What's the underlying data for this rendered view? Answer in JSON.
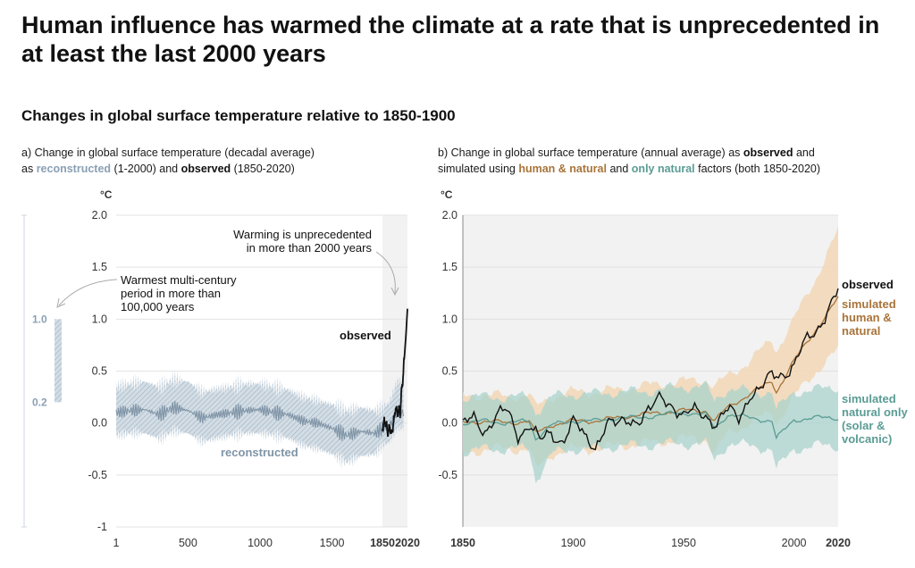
{
  "title": "Human influence has warmed the climate at a rate that is unprecedented in at least the last 2000 years",
  "subtitle": "Changes in global surface temperature relative to 1850-1900",
  "colors": {
    "reconstructed": "#8aa0b4",
    "reconstructed_band": "#c6d2dc",
    "observed": "#111111",
    "human_natural": "#a8743a",
    "human_natural_band": "#f2d7b6",
    "natural": "#5a9c94",
    "natural_band": "#a9d3cc",
    "plot_bg": "#f2f2f2"
  },
  "panel_a": {
    "title_prefix": "a) Change in global surface temperature (decadal average)",
    "title_as": "as",
    "title_reconstructed": "reconstructed",
    "title_recon_range": "(1-2000) and",
    "title_observed": "observed",
    "title_obs_range": "(1850-2020)"
  },
  "panel_b": {
    "title_prefix": "b) Change in global surface temperature (annual average) as",
    "title_observed": "observed",
    "title_and": "and",
    "title_simulated": "simulated using",
    "title_hn": "human & natural",
    "title_and2": "and",
    "title_nat": "only natural",
    "title_suffix": "factors (both 1850-2020)"
  },
  "chart_data": [
    {
      "type": "line",
      "panel": "a",
      "ylabel": "°C",
      "ylim": [
        -1,
        2
      ],
      "xlim": [
        1,
        2020
      ],
      "x_ticks": [
        "1",
        "500",
        "1000",
        "1500",
        "1850",
        "2020"
      ],
      "y_ticks": [
        "2.0",
        "1.5",
        "1.0",
        "0.5",
        "0.0",
        "-0.5",
        "-1"
      ],
      "shaded_period": [
        1850,
        2020
      ],
      "warmest_period_range": [
        0.2,
        1.0
      ],
      "warmest_period_labels": [
        "1.0",
        "0.2"
      ],
      "annotations": {
        "warming": [
          "Warming is unprecedented",
          "in more than 2000 years"
        ],
        "warmest": [
          "Warmest multi-century",
          "period in more than",
          "100,000 years"
        ]
      },
      "series": [
        {
          "name": "reconstructed",
          "x": [
            1,
            100,
            200,
            300,
            400,
            500,
            600,
            700,
            800,
            900,
            1000,
            1100,
            1200,
            1300,
            1400,
            1500,
            1600,
            1700,
            1800,
            1850,
            1900,
            1950
          ],
          "values": [
            0.1,
            0.12,
            0.13,
            0.08,
            0.15,
            0.12,
            0.05,
            0.08,
            0.1,
            0.12,
            0.13,
            0.1,
            0.08,
            0.02,
            0.0,
            -0.05,
            -0.12,
            -0.08,
            -0.1,
            -0.05,
            -0.02,
            0.1
          ],
          "lower": [
            -0.12,
            -0.1,
            -0.1,
            -0.15,
            -0.08,
            -0.1,
            -0.18,
            -0.15,
            -0.12,
            -0.1,
            -0.1,
            -0.12,
            -0.15,
            -0.22,
            -0.25,
            -0.3,
            -0.38,
            -0.32,
            -0.3,
            -0.22,
            -0.18,
            -0.05
          ],
          "upper": [
            0.35,
            0.38,
            0.4,
            0.35,
            0.42,
            0.4,
            0.3,
            0.33,
            0.35,
            0.38,
            0.38,
            0.35,
            0.32,
            0.25,
            0.22,
            0.18,
            0.12,
            0.15,
            0.12,
            0.15,
            0.2,
            0.4
          ]
        },
        {
          "name": "observed",
          "x": [
            1850,
            1860,
            1870,
            1880,
            1890,
            1900,
            1910,
            1920,
            1930,
            1940,
            1950,
            1960,
            1970,
            1980,
            1990,
            2000,
            2010,
            2020
          ],
          "values": [
            -0.05,
            0.0,
            0.02,
            -0.05,
            -0.1,
            -0.02,
            -0.12,
            -0.05,
            0.05,
            0.15,
            0.1,
            0.12,
            0.1,
            0.3,
            0.45,
            0.65,
            0.85,
            1.1
          ]
        }
      ]
    },
    {
      "type": "line",
      "panel": "b",
      "ylabel": "°C",
      "ylim": [
        -1,
        2
      ],
      "xlim": [
        1850,
        2020
      ],
      "x_ticks": [
        "1850",
        "1900",
        "1950",
        "2000",
        "2020"
      ],
      "y_ticks": [
        "2.0",
        "1.5",
        "1.0",
        "0.5",
        "0.0",
        "-0.5"
      ],
      "series": [
        {
          "name": "simulated human & natural",
          "x": [
            1850,
            1860,
            1870,
            1880,
            1883,
            1890,
            1900,
            1910,
            1920,
            1930,
            1940,
            1950,
            1960,
            1964,
            1970,
            1980,
            1990,
            1992,
            2000,
            2010,
            2020
          ],
          "values": [
            0.0,
            0.02,
            0.0,
            0.02,
            -0.1,
            -0.02,
            0.02,
            0.02,
            0.05,
            0.08,
            0.1,
            0.12,
            0.12,
            0.02,
            0.15,
            0.28,
            0.4,
            0.3,
            0.6,
            0.9,
            1.2
          ],
          "lower": [
            -0.3,
            -0.25,
            -0.25,
            -0.25,
            -0.45,
            -0.3,
            -0.25,
            -0.25,
            -0.22,
            -0.2,
            -0.18,
            -0.15,
            -0.15,
            -0.3,
            -0.1,
            0.0,
            0.1,
            0.0,
            0.25,
            0.5,
            0.7
          ],
          "upper": [
            0.25,
            0.28,
            0.25,
            0.28,
            0.15,
            0.25,
            0.3,
            0.3,
            0.32,
            0.35,
            0.38,
            0.4,
            0.42,
            0.35,
            0.45,
            0.6,
            0.8,
            0.7,
            1.0,
            1.4,
            1.85
          ]
        },
        {
          "name": "simulated natural only (solar & volcanic)",
          "x": [
            1850,
            1860,
            1870,
            1880,
            1883,
            1890,
            1900,
            1910,
            1920,
            1930,
            1940,
            1950,
            1960,
            1964,
            1970,
            1980,
            1990,
            1992,
            2000,
            2010,
            2020
          ],
          "values": [
            0.0,
            0.02,
            0.0,
            0.02,
            -0.15,
            -0.02,
            0.02,
            0.02,
            0.05,
            0.05,
            0.08,
            0.1,
            0.08,
            -0.05,
            0.08,
            0.05,
            0.02,
            -0.15,
            0.03,
            0.05,
            0.05
          ],
          "lower": [
            -0.28,
            -0.25,
            -0.25,
            -0.25,
            -0.55,
            -0.3,
            -0.25,
            -0.25,
            -0.22,
            -0.22,
            -0.2,
            -0.2,
            -0.2,
            -0.35,
            -0.2,
            -0.22,
            -0.25,
            -0.45,
            -0.25,
            -0.22,
            -0.22
          ],
          "upper": [
            0.25,
            0.25,
            0.25,
            0.25,
            0.1,
            0.25,
            0.28,
            0.28,
            0.3,
            0.3,
            0.32,
            0.35,
            0.35,
            0.22,
            0.33,
            0.3,
            0.3,
            0.12,
            0.3,
            0.32,
            0.35
          ]
        },
        {
          "name": "observed",
          "x": [
            1850,
            1855,
            1860,
            1865,
            1870,
            1875,
            1880,
            1885,
            1890,
            1895,
            1900,
            1905,
            1910,
            1915,
            1920,
            1925,
            1930,
            1935,
            1940,
            1945,
            1950,
            1955,
            1960,
            1965,
            1970,
            1975,
            1980,
            1985,
            1990,
            1995,
            2000,
            2005,
            2010,
            2015,
            2020
          ],
          "values": [
            -0.05,
            0.05,
            -0.05,
            0.05,
            0.1,
            -0.1,
            0.0,
            -0.2,
            -0.1,
            -0.15,
            0.0,
            -0.15,
            -0.2,
            0.0,
            -0.05,
            0.05,
            0.05,
            0.1,
            0.25,
            0.2,
            0.05,
            0.1,
            0.1,
            0.0,
            0.1,
            0.05,
            0.3,
            0.3,
            0.45,
            0.5,
            0.55,
            0.75,
            0.9,
            1.1,
            1.25
          ]
        }
      ],
      "labels": {
        "observed": "observed",
        "hn": [
          "simulated",
          "human &",
          "natural"
        ],
        "nat": [
          "simulated",
          "natural only",
          "(solar &",
          "volcanic)"
        ]
      }
    }
  ]
}
